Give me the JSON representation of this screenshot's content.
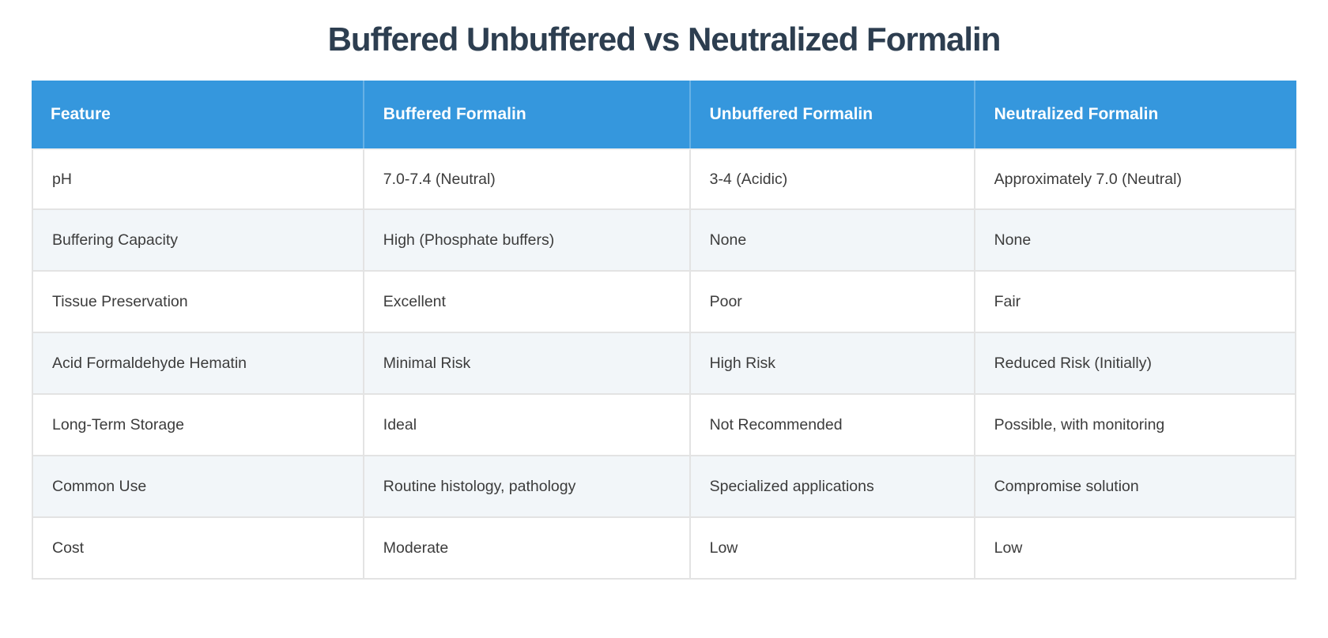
{
  "page": {
    "title": "Buffered Unbuffered vs Neutralized Formalin"
  },
  "table": {
    "columns": [
      "Feature",
      "Buffered Formalin",
      "Unbuffered Formalin",
      "Neutralized Formalin"
    ],
    "rows": [
      [
        "pH",
        "7.0-7.4 (Neutral)",
        "3-4 (Acidic)",
        "Approximately 7.0 (Neutral)"
      ],
      [
        "Buffering Capacity",
        "High (Phosphate buffers)",
        "None",
        "None"
      ],
      [
        "Tissue Preservation",
        "Excellent",
        "Poor",
        "Fair"
      ],
      [
        "Acid Formaldehyde Hematin",
        "Minimal Risk",
        "High Risk",
        "Reduced Risk (Initially)"
      ],
      [
        "Long-Term Storage",
        "Ideal",
        "Not Recommended",
        "Possible, with monitoring"
      ],
      [
        "Common Use",
        "Routine histology, pathology",
        "Specialized applications",
        "Compromise solution"
      ],
      [
        "Cost",
        "Moderate",
        "Low",
        "Low"
      ]
    ]
  },
  "colors": {
    "header_bg": "#3597dd",
    "header_text": "#ffffff",
    "row_bg": "#ffffff",
    "row_alt_bg": "#f2f6f9",
    "border": "#e3e3e3",
    "title_text": "#2d3e50",
    "cell_text": "#3c3c3c"
  },
  "chart_data": {
    "type": "table",
    "title": "Buffered Unbuffered vs Neutralized Formalin",
    "columns": [
      "Feature",
      "Buffered Formalin",
      "Unbuffered Formalin",
      "Neutralized Formalin"
    ],
    "rows": [
      [
        "pH",
        "7.0-7.4 (Neutral)",
        "3-4 (Acidic)",
        "Approximately 7.0 (Neutral)"
      ],
      [
        "Buffering Capacity",
        "High (Phosphate buffers)",
        "None",
        "None"
      ],
      [
        "Tissue Preservation",
        "Excellent",
        "Poor",
        "Fair"
      ],
      [
        "Acid Formaldehyde Hematin",
        "Minimal Risk",
        "High Risk",
        "Reduced Risk (Initially)"
      ],
      [
        "Long-Term Storage",
        "Ideal",
        "Not Recommended",
        "Possible, with monitoring"
      ],
      [
        "Common Use",
        "Routine histology, pathology",
        "Specialized applications",
        "Compromise solution"
      ],
      [
        "Cost",
        "Moderate",
        "Low",
        "Low"
      ]
    ],
    "layout": {
      "header_position": "top",
      "grid": true,
      "zebra_striping": true,
      "text_align": "left"
    }
  }
}
